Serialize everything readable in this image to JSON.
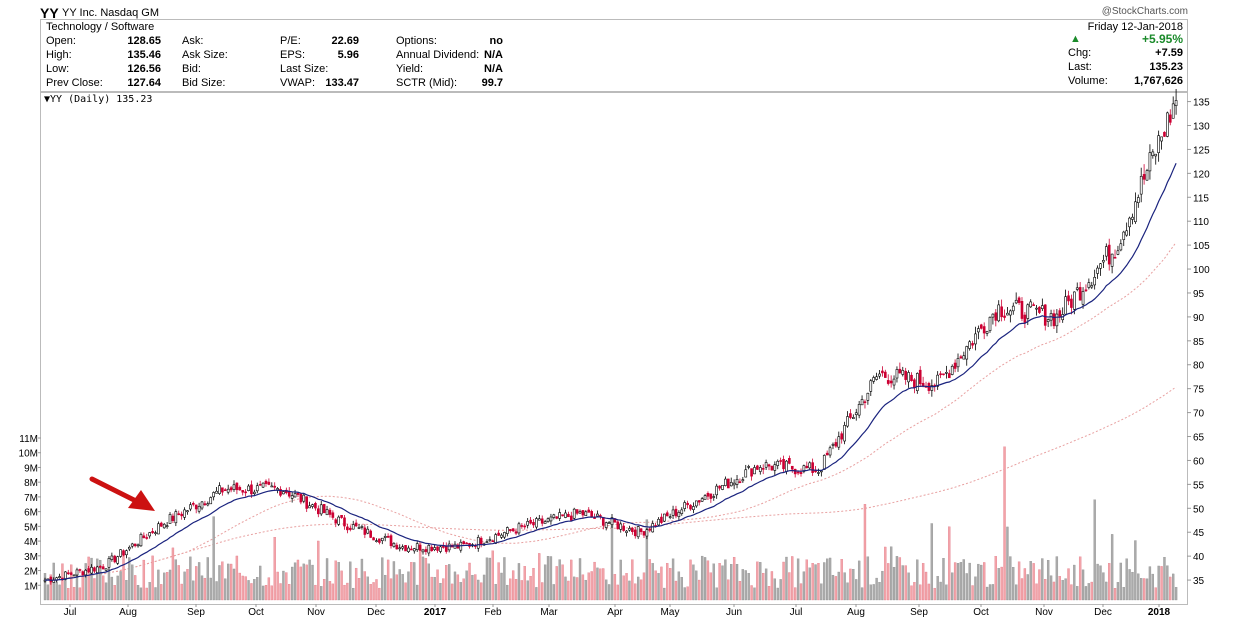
{
  "header": {
    "ticker": "YY",
    "company": "YY Inc. Nasdaq GM",
    "brand": "@StockCharts.com",
    "sector": "Technology / Software",
    "date": "Friday  12-Jan-2018"
  },
  "quote": {
    "open_label": "Open:",
    "open": "128.65",
    "high_label": "High:",
    "high": "135.46",
    "low_label": "Low:",
    "low": "126.56",
    "prev_label": "Prev Close:",
    "prev": "127.64",
    "ask_label": "Ask:",
    "ask": "",
    "asksize_label": "Ask Size:",
    "asksize": "",
    "bid_label": "Bid:",
    "bid": "",
    "bidsize_label": "Bid Size:",
    "bidsize": "",
    "pe_label": "P/E:",
    "pe": "22.69",
    "eps_label": "EPS:",
    "eps": "5.96",
    "lastsize_label": "Last Size:",
    "lastsize": "",
    "vwap_label": "VWAP:",
    "vwap": "133.47",
    "options_label": "Options:",
    "options": "no",
    "div_label": "Annual Dividend:",
    "div": "N/A",
    "yield_label": "Yield:",
    "yield": "N/A",
    "sctr_label": "SCTR (Mid):",
    "sctr": "99.7",
    "pct_change": "+5.95%",
    "chg_label": "Chg:",
    "chg": "+7.59",
    "last_label": "Last:",
    "last": "135.23",
    "volume_label": "Volume:",
    "volume": "1,767,626"
  },
  "legend": "YY (Daily) 135.23",
  "colors": {
    "up": "#000000",
    "down": "#cc0033",
    "ema": "#1a237e",
    "ma": "#e8a0a0",
    "arrow": "#cc1111",
    "vol_up": "#aaaaaa",
    "vol_down": "#f2a3a8"
  },
  "chart_data": {
    "type": "candlestick",
    "title": "YY (Daily) 135.23",
    "x_tick_labels": [
      "Jul",
      "Aug",
      "Sep",
      "Oct",
      "Nov",
      "Dec",
      "2017",
      "Feb",
      "Mar",
      "Apr",
      "May",
      "Jun",
      "Jul",
      "Aug",
      "Sep",
      "Oct",
      "Nov",
      "Dec",
      "2018"
    ],
    "y_tick_labels": [
      "35",
      "40",
      "45",
      "50",
      "55",
      "60",
      "65",
      "70",
      "75",
      "80",
      "85",
      "90",
      "95",
      "100",
      "105",
      "110",
      "115",
      "120",
      "125",
      "130",
      "135"
    ],
    "ylim": [
      30,
      137
    ],
    "volume_tick_labels": [
      "1M",
      "2M",
      "3M",
      "4M",
      "5M",
      "6M",
      "7M",
      "8M",
      "9M",
      "10M",
      "11M"
    ],
    "volume_ylim": [
      0,
      11
    ],
    "close_trajectory": [
      {
        "month": "Jun-2016",
        "price": 35
      },
      {
        "month": "Jul-2016",
        "price": 38
      },
      {
        "month": "Aug-2016",
        "price": 47
      },
      {
        "month": "Sep-2016",
        "price": 54
      },
      {
        "month": "Oct-2016",
        "price": 54
      },
      {
        "month": "Nov-2016",
        "price": 47
      },
      {
        "month": "Dec-2016",
        "price": 42
      },
      {
        "month": "Jan-2017",
        "price": 42
      },
      {
        "month": "Feb-2017",
        "price": 46
      },
      {
        "month": "Mar-2017",
        "price": 49
      },
      {
        "month": "Apr-2017",
        "price": 45
      },
      {
        "month": "May-2017",
        "price": 52
      },
      {
        "month": "Jun-2017",
        "price": 59
      },
      {
        "month": "Jul-2017",
        "price": 58
      },
      {
        "month": "Aug-2017",
        "price": 78
      },
      {
        "month": "Sep-2017",
        "price": 76
      },
      {
        "month": "Oct-2017",
        "price": 92
      },
      {
        "month": "Nov-2017",
        "price": 90
      },
      {
        "month": "Dec-2017",
        "price": 105
      },
      {
        "month": "Jan-2018",
        "price": 135.23
      }
    ],
    "annotation": "arrow pointing to August 2016 breakout"
  }
}
